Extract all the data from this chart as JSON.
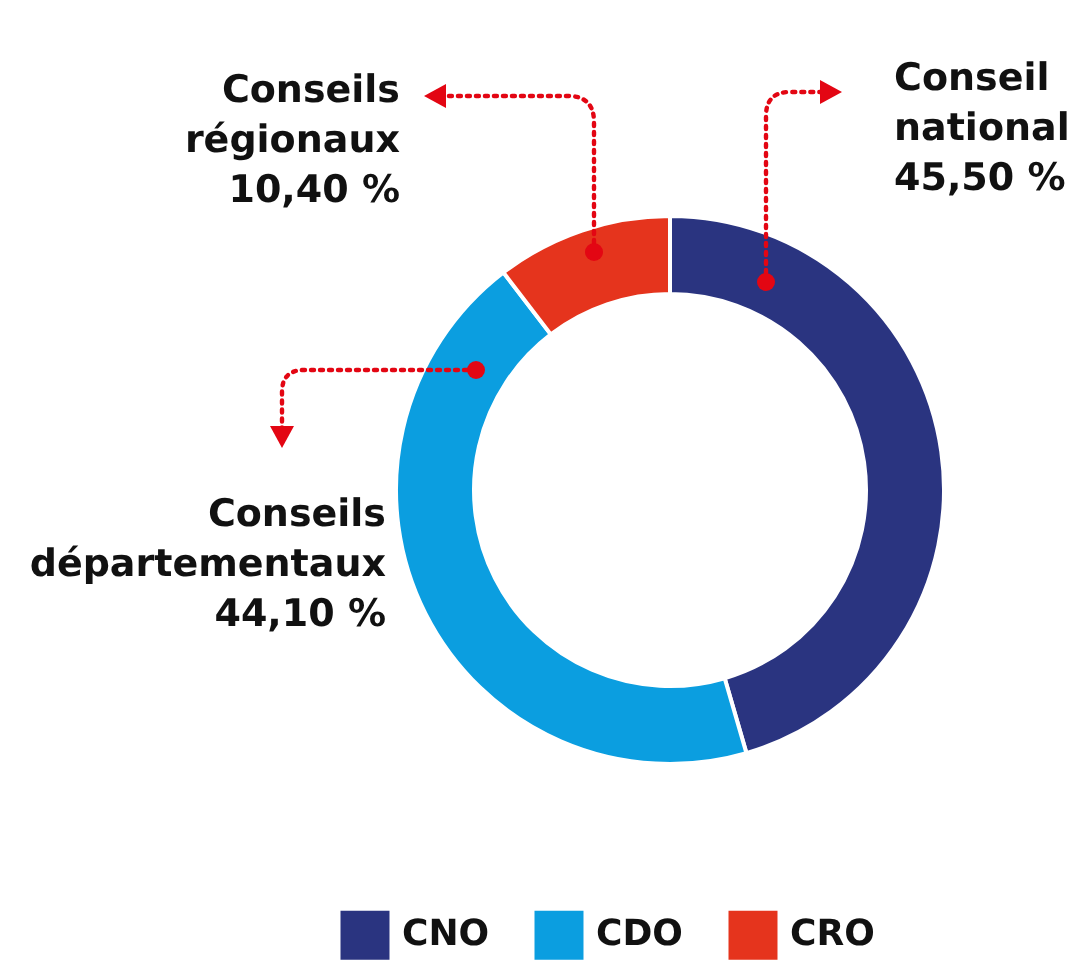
{
  "chart_data": {
    "type": "donut",
    "categories": [
      "CNO",
      "CDO",
      "CRO"
    ],
    "values": [
      45.5,
      44.1,
      10.4
    ],
    "colors": [
      "#2a3480",
      "#0b9ee0",
      "#e5341d"
    ],
    "value_labels": [
      "45,50 %",
      "44,10 %",
      "10,40 %"
    ],
    "annotations": [
      "Conseil national",
      "Conseils départementaux",
      "Conseils régionaux"
    ],
    "legend": "bottom"
  }
}
